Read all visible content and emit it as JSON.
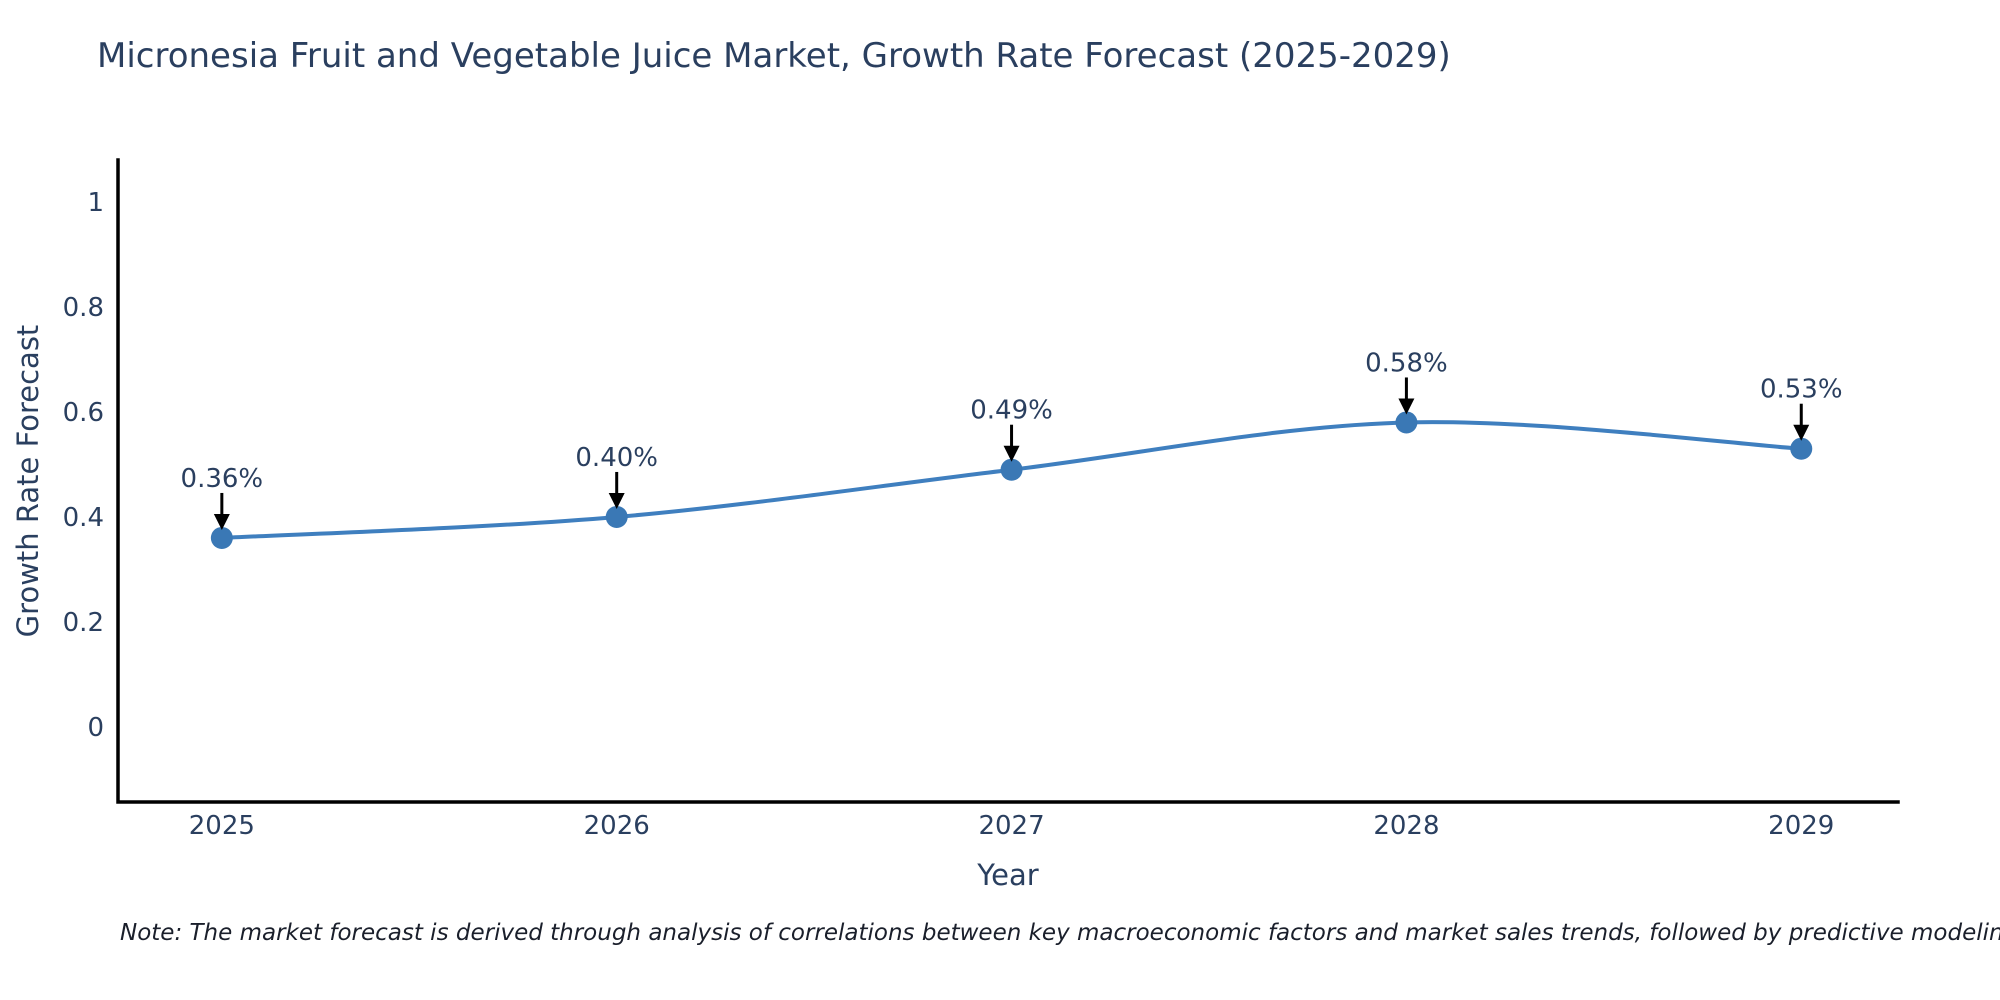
{
  "title": "Micronesia Fruit and Vegetable Juice Market, Growth Rate Forecast (2025-2029)",
  "note": "Note: The market forecast is derived through analysis of correlations between key macroeconomic factors and market sales trends, followed by predictive modeling to project future sales",
  "chart_data": {
    "type": "line",
    "title": "Micronesia Fruit and Vegetable Juice Market, Growth Rate Forecast (2025-2029)",
    "xlabel": "Year",
    "ylabel": "Growth Rate Forecast",
    "line_shape": "spline",
    "grid": false,
    "legend": "none",
    "x": [
      2025,
      2026,
      2027,
      2028,
      2029
    ],
    "values": [
      0.36,
      0.4,
      0.49,
      0.58,
      0.53
    ],
    "point_labels": [
      "0.36%",
      "0.40%",
      "0.49%",
      "0.58%",
      "0.53%"
    ],
    "xlim": [
      2024.737,
      2029.245
    ],
    "ylim": [
      -0.143,
      1.08
    ],
    "yticks": [
      {
        "v": 1,
        "label": "1"
      },
      {
        "v": 0.8,
        "label": "0.8"
      },
      {
        "v": 0.6,
        "label": "0.6"
      },
      {
        "v": 0.4,
        "label": "0.4"
      },
      {
        "v": 0.2,
        "label": "0.2"
      },
      {
        "v": 0,
        "label": "0"
      }
    ],
    "xticks": [
      {
        "v": 2025,
        "label": "2025"
      },
      {
        "v": 2026,
        "label": "2026"
      },
      {
        "v": 2027,
        "label": "2027"
      },
      {
        "v": 2028,
        "label": "2028"
      },
      {
        "v": 2029,
        "label": "2029"
      }
    ],
    "colors": {
      "line": "#3f7fbf",
      "marker": "#3a78b5",
      "arrow": "#000000",
      "axis": "#000000",
      "text": "#2a3f5f"
    }
  }
}
